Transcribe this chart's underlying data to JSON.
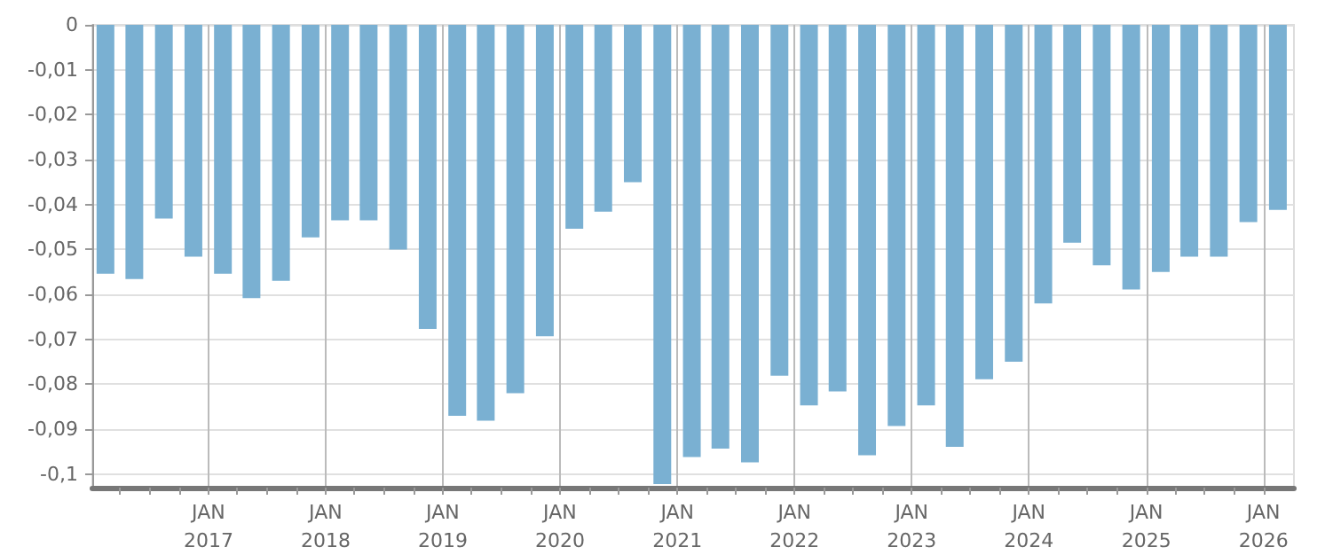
{
  "chart_data": {
    "type": "bar",
    "x": [
      "2016-02-15",
      "2016-05-15",
      "2016-08-15",
      "2016-11-15",
      "2017-02-15",
      "2017-05-15",
      "2017-08-15",
      "2017-11-15",
      "2018-02-15",
      "2018-05-15",
      "2018-08-15",
      "2018-11-15",
      "2019-02-15",
      "2019-05-15",
      "2019-08-15",
      "2019-11-15",
      "2020-02-15",
      "2020-05-15",
      "2020-08-15",
      "2020-11-15",
      "2021-02-15",
      "2021-05-15",
      "2021-08-15",
      "2021-11-15",
      "2022-02-15",
      "2022-05-15",
      "2022-08-15",
      "2022-11-15",
      "2023-02-15",
      "2023-05-15",
      "2023-08-15",
      "2023-11-15",
      "2024-02-15",
      "2024-05-15",
      "2024-08-15",
      "2024-11-15",
      "2025-02-15",
      "2025-05-15",
      "2025-08-15",
      "2025-11-15",
      "2026-02-15"
    ],
    "values": [
      -0.0554,
      -0.0566,
      -0.0431,
      -0.0516,
      -0.0554,
      -0.0608,
      -0.057,
      -0.0473,
      -0.0435,
      -0.0435,
      -0.05,
      -0.0677,
      -0.087,
      -0.0881,
      -0.082,
      -0.0693,
      -0.0454,
      -0.0416,
      -0.035,
      -0.1022,
      -0.0962,
      -0.0943,
      -0.0974,
      -0.0781,
      -0.0847,
      -0.0816,
      -0.0958,
      -0.0893,
      -0.0847,
      -0.0939,
      -0.0789,
      -0.075,
      -0.062,
      -0.0485,
      -0.0535,
      -0.0589,
      -0.055,
      -0.0516,
      -0.0516,
      -0.0439,
      -0.0412
    ],
    "color": "#7ab0d2",
    "ylim": [
      -0.103,
      0
    ],
    "yticks": [
      0,
      {
        "value": -0.01,
        "label": "-0,01"
      },
      {
        "value": -0.02,
        "label": "-0,02"
      },
      {
        "value": -0.03,
        "label": "-0,03"
      },
      {
        "value": -0.04,
        "label": "-0,04"
      },
      {
        "value": -0.05,
        "label": "-0,05"
      },
      {
        "value": -0.06,
        "label": "-0,06"
      },
      {
        "value": -0.07,
        "label": "-0,07"
      },
      {
        "value": -0.08,
        "label": "-0,08"
      },
      {
        "value": -0.09,
        "label": "-0,09"
      },
      {
        "value": -0.1,
        "label": "-0,1"
      }
    ],
    "xlim": [
      "2016-01-05",
      "2026-04-06"
    ],
    "xticks": [
      {
        "value": "2016-04-01",
        "label": null
      },
      {
        "value": "2016-07-01",
        "label": null
      },
      {
        "value": "2016-10-01",
        "label": null
      },
      {
        "value": "2017-01-01",
        "label": "JAN\n2017"
      },
      {
        "value": "2017-04-01",
        "label": null
      },
      {
        "value": "2017-07-01",
        "label": null
      },
      {
        "value": "2017-10-01",
        "label": null
      },
      {
        "value": "2018-01-01",
        "label": "JAN\n2018"
      },
      {
        "value": "2018-04-01",
        "label": null
      },
      {
        "value": "2018-07-01",
        "label": null
      },
      {
        "value": "2018-10-01",
        "label": null
      },
      {
        "value": "2019-01-01",
        "label": "JAN\n2019"
      },
      {
        "value": "2019-04-01",
        "label": null
      },
      {
        "value": "2019-07-01",
        "label": null
      },
      {
        "value": "2019-10-01",
        "label": null
      },
      {
        "value": "2020-01-01",
        "label": "JAN\n2020"
      },
      {
        "value": "2020-04-01",
        "label": null
      },
      {
        "value": "2020-07-01",
        "label": null
      },
      {
        "value": "2020-10-01",
        "label": null
      },
      {
        "value": "2021-01-01",
        "label": "JAN\n2021"
      },
      {
        "value": "2021-04-01",
        "label": null
      },
      {
        "value": "2021-07-01",
        "label": null
      },
      {
        "value": "2021-10-01",
        "label": null
      },
      {
        "value": "2022-01-01",
        "label": "JAN\n2022"
      },
      {
        "value": "2022-04-01",
        "label": null
      },
      {
        "value": "2022-07-01",
        "label": null
      },
      {
        "value": "2022-10-01",
        "label": null
      },
      {
        "value": "2023-01-01",
        "label": "JAN\n2023"
      },
      {
        "value": "2023-04-01",
        "label": null
      },
      {
        "value": "2023-07-01",
        "label": null
      },
      {
        "value": "2023-10-01",
        "label": null
      },
      {
        "value": "2024-01-01",
        "label": "JAN\n2024"
      },
      {
        "value": "2024-04-01",
        "label": null
      },
      {
        "value": "2024-07-01",
        "label": null
      },
      {
        "value": "2024-10-01",
        "label": null
      },
      {
        "value": "2025-01-01",
        "label": "JAN\n2025"
      },
      {
        "value": "2025-04-01",
        "label": null
      },
      {
        "value": "2025-07-01",
        "label": null
      },
      {
        "value": "2025-10-01",
        "label": null
      },
      {
        "value": "2026-01-01",
        "label": "JAN\n2026"
      }
    ],
    "grid": true
  }
}
